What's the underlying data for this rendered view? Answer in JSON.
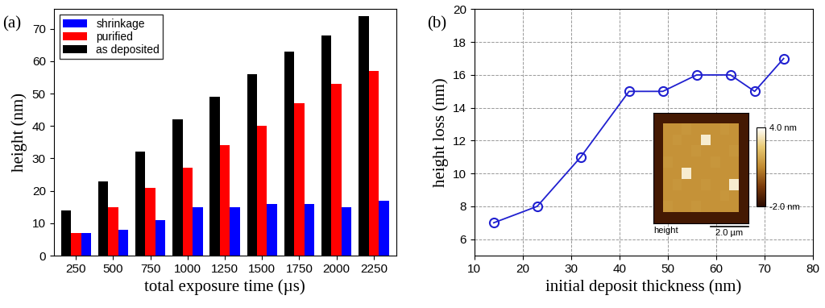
{
  "chart_data": [
    {
      "type": "bar",
      "title": "(a)",
      "categories": [
        "250",
        "500",
        "750",
        "1000",
        "1250",
        "1500",
        "1750",
        "2000",
        "2250"
      ],
      "series": [
        {
          "name": "as deposited",
          "color": "#000000",
          "values": [
            14,
            23,
            32,
            42,
            49,
            56,
            63,
            68,
            74
          ]
        },
        {
          "name": "purified",
          "color": "#ff0000",
          "values": [
            7,
            15,
            21,
            27,
            34,
            40,
            47,
            53,
            57
          ]
        },
        {
          "name": "shrinkage",
          "color": "#0000ff",
          "values": [
            7,
            8,
            11,
            15,
            15,
            16,
            16,
            15,
            17
          ]
        }
      ],
      "xlabel": "total exposure time (µs)",
      "ylabel": "height (nm)",
      "ylim": [
        0,
        76
      ],
      "yticks": [
        0,
        10,
        20,
        30,
        40,
        50,
        60,
        70
      ],
      "legend": "upper left",
      "grid": false
    },
    {
      "type": "line",
      "title": "(b)",
      "x": [
        14,
        23,
        32,
        42,
        49,
        56,
        63,
        68,
        74
      ],
      "values": [
        7,
        8,
        11,
        15,
        15,
        16,
        16,
        15,
        17
      ],
      "color": "#2020d0",
      "marker": "circle",
      "line_style": "solid",
      "xlabel": "initial deposit thickness (nm)",
      "ylabel": "height loss (nm)",
      "xlim": [
        10,
        80
      ],
      "xticks": [
        10,
        20,
        30,
        40,
        50,
        60,
        70,
        80
      ],
      "ylim": [
        5,
        20
      ],
      "yticks": [
        6,
        8,
        10,
        12,
        14,
        16,
        18,
        20
      ],
      "grid": true
    },
    {
      "type": "heatmap",
      "cells": [
        [
          -1.5,
          -1.5,
          -1.5,
          -1.5,
          -1.5,
          -1.5,
          -1.5,
          -1.5,
          -1.5,
          -1.5
        ],
        [
          -1.5,
          1.2,
          1.2,
          1.3,
          1.2,
          1.2,
          1.2,
          1.3,
          1.2,
          -1.5
        ],
        [
          -1.5,
          1.2,
          1.3,
          1.2,
          1.2,
          3.5,
          1.2,
          1.2,
          1.2,
          -1.5
        ],
        [
          -1.5,
          1.2,
          1.2,
          1.2,
          1.3,
          1.2,
          1.2,
          1.2,
          1.3,
          -1.5
        ],
        [
          -1.5,
          1.3,
          1.2,
          1.2,
          1.2,
          1.2,
          1.3,
          1.2,
          1.2,
          -1.5
        ],
        [
          -1.5,
          1.2,
          1.2,
          3.5,
          1.2,
          1.2,
          1.2,
          1.2,
          1.2,
          -1.5
        ],
        [
          -1.5,
          1.2,
          1.3,
          1.2,
          1.2,
          1.3,
          1.2,
          1.2,
          3.5,
          -1.5
        ],
        [
          -1.5,
          1.2,
          1.2,
          1.2,
          1.2,
          1.2,
          1.2,
          1.3,
          1.2,
          -1.5
        ],
        [
          -1.5,
          1.3,
          1.2,
          1.2,
          1.3,
          1.2,
          1.2,
          1.2,
          1.2,
          -1.5
        ],
        [
          -1.5,
          -1.5,
          -1.5,
          -1.5,
          -1.5,
          -1.5,
          -1.5,
          -1.5,
          -1.5,
          -1.5
        ]
      ],
      "colorbar_range": [
        -2,
        4
      ],
      "colorbar_ticks": [
        {
          "value": 4,
          "label": "4.0 nm"
        },
        {
          "value": -2,
          "label": "-2.0 nm"
        }
      ],
      "annotations": [
        "height",
        "2.0 µm"
      ],
      "tick_labels": false
    }
  ]
}
